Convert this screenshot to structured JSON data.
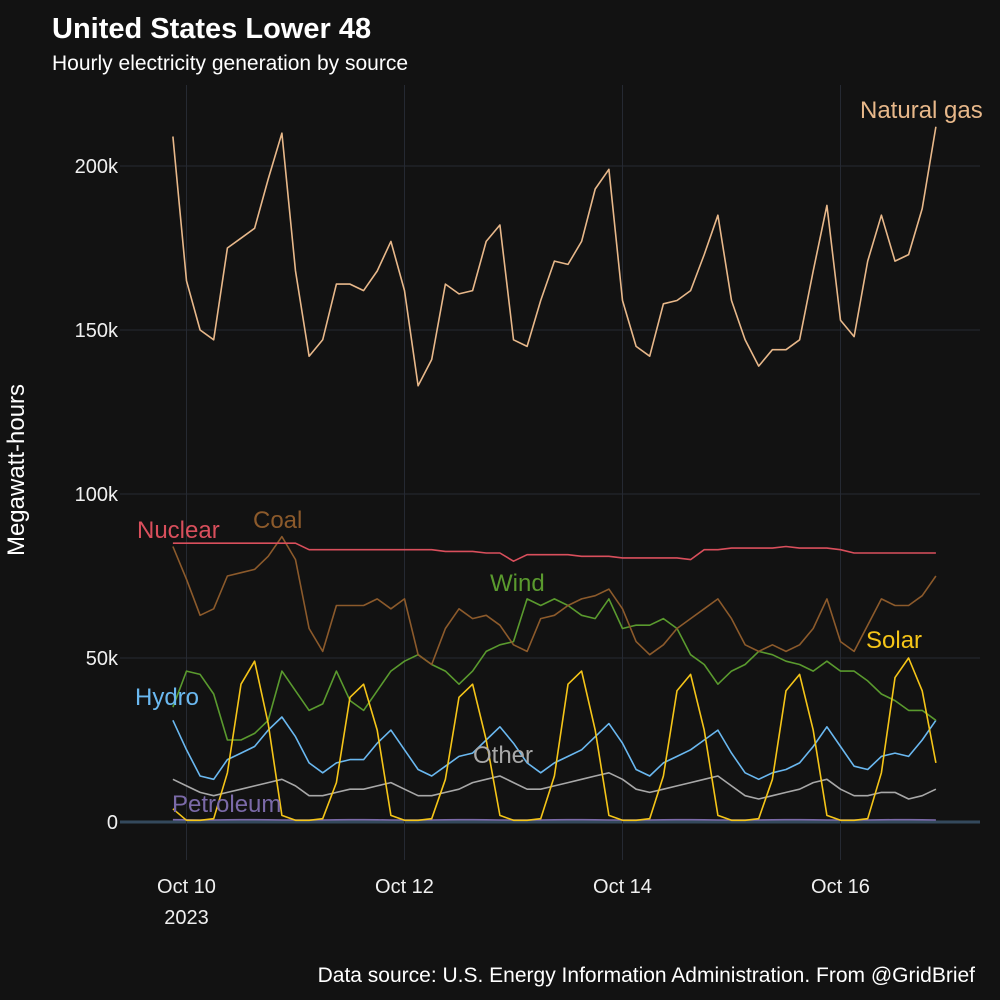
{
  "chart_data": {
    "type": "line",
    "title": "United States Lower 48",
    "subtitle": "Hourly electricity generation by source",
    "ylabel": "Megawatt-hours",
    "caption": "Data source: U.S. Energy Information Administration. From @GridBrief",
    "xtick_year": "2023",
    "grid": true,
    "xlim": [
      9.39,
      17.28
    ],
    "ylim": [
      -11600,
      224700
    ],
    "xticks": [
      {
        "value": 10,
        "label": "Oct 10"
      },
      {
        "value": 12,
        "label": "Oct 12"
      },
      {
        "value": 14,
        "label": "Oct 14"
      },
      {
        "value": 16,
        "label": "Oct 16"
      }
    ],
    "yticks": [
      0,
      {
        "value": 50000,
        "label": "50k"
      },
      {
        "value": 100000,
        "label": "100k"
      },
      {
        "value": 150000,
        "label": "150k"
      },
      {
        "value": 200000,
        "label": "200k"
      }
    ],
    "x": [
      9.875,
      10,
      10.125,
      10.25,
      10.375,
      10.5,
      10.625,
      10.75,
      10.875,
      11,
      11.125,
      11.25,
      11.375,
      11.5,
      11.625,
      11.75,
      11.875,
      12,
      12.125,
      12.25,
      12.375,
      12.5,
      12.625,
      12.75,
      12.875,
      13,
      13.125,
      13.25,
      13.375,
      13.5,
      13.625,
      13.75,
      13.875,
      14,
      14.125,
      14.25,
      14.375,
      14.5,
      14.625,
      14.75,
      14.875,
      15,
      15.125,
      15.25,
      15.375,
      15.5,
      15.625,
      15.75,
      15.875,
      16,
      16.125,
      16.25,
      16.375,
      16.5,
      16.625,
      16.75,
      16.875
    ],
    "series": [
      {
        "name": "Petroleum",
        "color": "#7b6aa8",
        "values": [
          700,
          650,
          600,
          600,
          650,
          700,
          700,
          650,
          600,
          600,
          600,
          600,
          650,
          700,
          700,
          650,
          600,
          600,
          600,
          600,
          650,
          700,
          700,
          650,
          600,
          600,
          600,
          600,
          650,
          700,
          700,
          650,
          600,
          600,
          600,
          600,
          650,
          700,
          700,
          650,
          600,
          600,
          600,
          600,
          650,
          700,
          700,
          650,
          600,
          600,
          600,
          600,
          650,
          700,
          700,
          650,
          600
        ]
      },
      {
        "name": "Other",
        "color": "#a8a8a8",
        "values": [
          13000,
          11000,
          9000,
          8000,
          9000,
          10000,
          11000,
          12000,
          13000,
          11000,
          8000,
          8000,
          9000,
          10000,
          10000,
          11000,
          12000,
          10000,
          8000,
          8000,
          9000,
          10000,
          12000,
          13000,
          14000,
          12000,
          10000,
          10000,
          11000,
          12000,
          13000,
          14000,
          15000,
          13000,
          10000,
          9000,
          10000,
          11000,
          12000,
          13000,
          14000,
          11000,
          8000,
          7000,
          8000,
          9000,
          10000,
          12000,
          13000,
          10000,
          8000,
          8000,
          9000,
          9000,
          7000,
          8000,
          10000
        ]
      },
      {
        "name": "Hydro",
        "color": "#6ab8f0",
        "values": [
          31000,
          22000,
          14000,
          13000,
          19000,
          21000,
          23000,
          28000,
          32000,
          26000,
          18000,
          15000,
          18000,
          19000,
          19000,
          24000,
          28000,
          22000,
          16000,
          14000,
          17000,
          20000,
          21000,
          25000,
          29000,
          24000,
          18000,
          15000,
          18000,
          20000,
          22000,
          26000,
          30000,
          24000,
          16000,
          14000,
          18000,
          20000,
          22000,
          25000,
          28000,
          21000,
          15000,
          13000,
          15000,
          16000,
          18000,
          23000,
          29000,
          23000,
          17000,
          16000,
          20000,
          21000,
          20000,
          25000,
          31000
        ]
      },
      {
        "name": "Wind",
        "color": "#5a9a2e",
        "values": [
          35000,
          46000,
          45000,
          39000,
          25000,
          25000,
          27000,
          31000,
          46000,
          40000,
          34000,
          36000,
          46000,
          37000,
          34000,
          40000,
          46000,
          49000,
          51000,
          48000,
          46000,
          42000,
          46000,
          52000,
          54000,
          55000,
          68000,
          66000,
          68000,
          66000,
          63000,
          62000,
          68000,
          59000,
          60000,
          60000,
          62000,
          59000,
          51000,
          48000,
          42000,
          46000,
          48000,
          52000,
          51000,
          49000,
          48000,
          46000,
          49000,
          46000,
          46000,
          43000,
          39000,
          37000,
          34000,
          34000,
          31000
        ]
      },
      {
        "name": "Coal",
        "color": "#8c5a2b",
        "values": [
          84000,
          74000,
          63000,
          65000,
          75000,
          76000,
          77000,
          81000,
          87000,
          80000,
          59000,
          52000,
          66000,
          66000,
          66000,
          68000,
          65000,
          68000,
          51000,
          48000,
          59000,
          65000,
          62000,
          63000,
          60000,
          54000,
          52000,
          62000,
          63000,
          66000,
          68000,
          69000,
          71000,
          65000,
          55000,
          51000,
          54000,
          59000,
          62000,
          65000,
          68000,
          62000,
          54000,
          52000,
          54000,
          52000,
          54000,
          59000,
          68000,
          55000,
          52000,
          60000,
          68000,
          66000,
          66000,
          69000,
          75000
        ]
      },
      {
        "name": "Nuclear",
        "color": "#d94f5c",
        "values": [
          85000,
          85000,
          85000,
          85000,
          85000,
          85000,
          85000,
          85000,
          85000,
          85000,
          83000,
          83000,
          83000,
          83000,
          83000,
          83000,
          83000,
          83000,
          83000,
          83000,
          82500,
          82500,
          82500,
          82000,
          82000,
          79500,
          81500,
          81500,
          81500,
          81500,
          81000,
          81000,
          81000,
          80500,
          80500,
          80500,
          80500,
          80500,
          80000,
          83000,
          83000,
          83500,
          83500,
          83500,
          83500,
          84000,
          83500,
          83500,
          83500,
          83000,
          82000,
          82000,
          82000,
          82000,
          82000,
          82000,
          82000
        ]
      },
      {
        "name": "Solar",
        "color": "#f5c518",
        "values": [
          4000,
          500,
          500,
          1000,
          15000,
          42000,
          49000,
          30000,
          2000,
          500,
          500,
          1000,
          12000,
          38000,
          42000,
          28000,
          2000,
          500,
          500,
          1000,
          13000,
          38000,
          42000,
          25000,
          2000,
          500,
          500,
          1000,
          14000,
          42000,
          46000,
          28000,
          2000,
          500,
          500,
          1000,
          14000,
          40000,
          45000,
          28000,
          2000,
          500,
          500,
          1000,
          13000,
          40000,
          45000,
          28000,
          2000,
          500,
          500,
          1000,
          15000,
          44000,
          50000,
          40000,
          18000
        ]
      },
      {
        "name": "Natural gas",
        "color": "#e8b88a",
        "values": [
          209000,
          165000,
          150000,
          147000,
          175000,
          178000,
          181000,
          196000,
          210000,
          168000,
          142000,
          147000,
          164000,
          164000,
          162000,
          168000,
          177000,
          162000,
          133000,
          141000,
          164000,
          161000,
          162000,
          177000,
          182000,
          147000,
          145000,
          159000,
          171000,
          170000,
          177000,
          193000,
          199000,
          159000,
          145000,
          142000,
          158000,
          159000,
          162000,
          173000,
          185000,
          159000,
          147000,
          139000,
          144000,
          144000,
          147000,
          168000,
          188000,
          153000,
          148000,
          171000,
          185000,
          171000,
          173000,
          187000,
          212000
        ]
      }
    ]
  }
}
